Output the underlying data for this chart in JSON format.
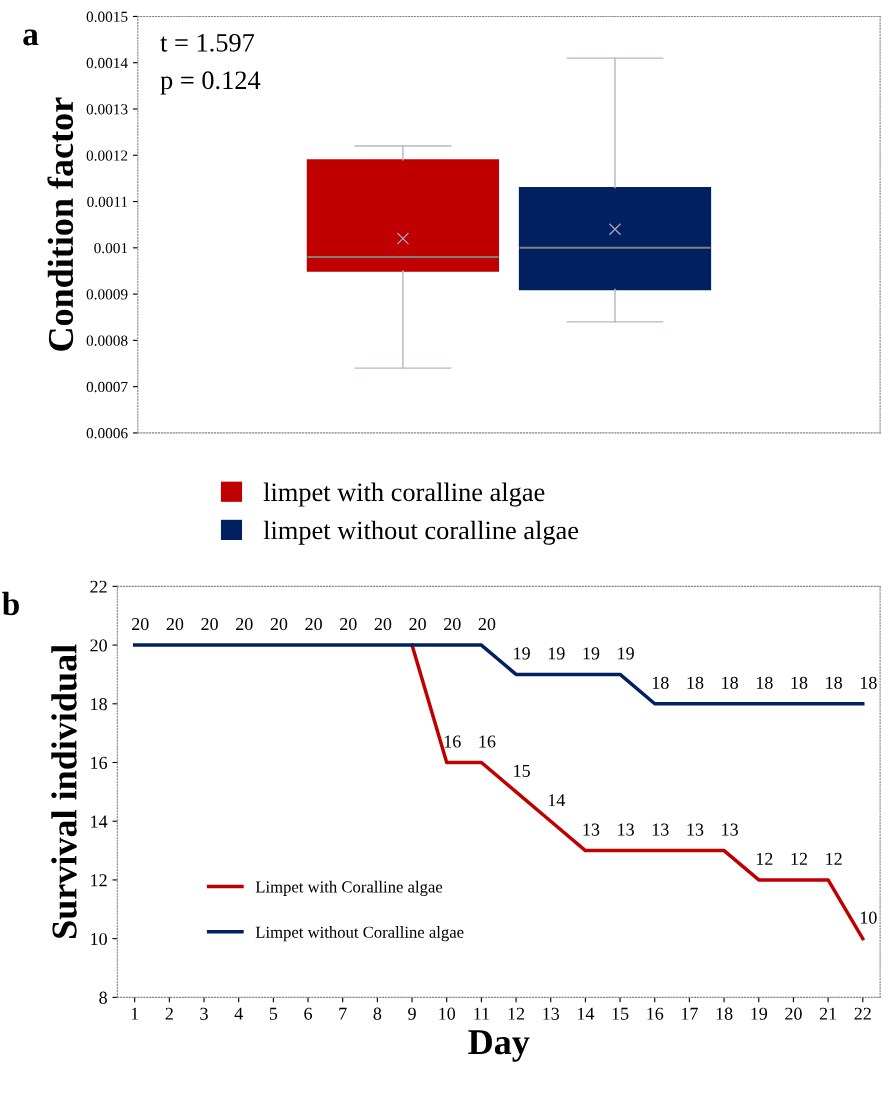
{
  "chart_data": [
    {
      "type": "box",
      "title": "a",
      "ylabel": "Condition factor",
      "categories": [
        null
      ],
      "series": [
        {
          "name": "limpet with coralline algae",
          "color": "#c00000",
          "boxes": [
            {
              "low": 0.00074,
              "q1": 0.00095,
              "median": 0.00098,
              "q3": 0.00119,
              "high": 0.00122,
              "mean": 0.00102
            }
          ]
        },
        {
          "name": "limpet without coralline algae",
          "color": "#002060",
          "boxes": [
            {
              "low": 0.00084,
              "q1": 0.00091,
              "median": 0.001,
              "q3": 0.00113,
              "high": 0.00141,
              "mean": 0.00104
            }
          ]
        }
      ],
      "ylim": [
        0.0006,
        0.0015
      ],
      "yticks": [
        0.0006,
        0.0007,
        0.0008,
        0.0009,
        0.001,
        0.0011,
        0.0012,
        0.0013,
        0.0014,
        0.0015
      ],
      "tick_labels": "y",
      "grid": false,
      "legend": "bottom",
      "annotations": [
        "t = 1.597",
        "p = 0.124"
      ]
    },
    {
      "type": "line",
      "title": "b",
      "xlabel": "Day",
      "ylabel": "Survival individual",
      "categories": [
        "1",
        "2",
        "3",
        "4",
        "5",
        "6",
        "7",
        "8",
        "9",
        "10",
        "11",
        "12",
        "13",
        "14",
        "15",
        "16",
        "17",
        "18",
        "19",
        "20",
        "21",
        "22"
      ],
      "series": [
        {
          "name": "Limpet with Coralline algae",
          "color": "#c00000",
          "values": [
            null,
            null,
            null,
            null,
            null,
            null,
            null,
            null,
            20,
            16,
            16,
            15,
            14,
            13,
            13,
            13,
            13,
            13,
            12,
            12,
            12,
            10
          ],
          "value_labels": [
            null,
            null,
            null,
            null,
            null,
            null,
            null,
            null,
            null,
            "16",
            "16",
            "15",
            "14",
            "13",
            "13",
            "13",
            "13",
            "13",
            "12",
            "12",
            "12",
            "10"
          ]
        },
        {
          "name": "Limpet without Coralline algae",
          "color": "#002060",
          "values": [
            20,
            20,
            20,
            20,
            20,
            20,
            20,
            20,
            20,
            20,
            20,
            19,
            19,
            19,
            19,
            18,
            18,
            18,
            18,
            18,
            18,
            18
          ],
          "value_labels": [
            "20",
            "20",
            "20",
            "20",
            "20",
            "20",
            "20",
            "20",
            "20",
            "20",
            "20",
            "19",
            "19",
            "19",
            "19",
            "18",
            "18",
            "18",
            "18",
            "18",
            "18",
            "18"
          ]
        }
      ],
      "ylim": [
        8,
        22
      ],
      "yticks": [
        8,
        10,
        12,
        14,
        16,
        18,
        20,
        22
      ],
      "grid": false,
      "legend": "bottom left",
      "marker": "none",
      "line_style": "solid"
    }
  ]
}
